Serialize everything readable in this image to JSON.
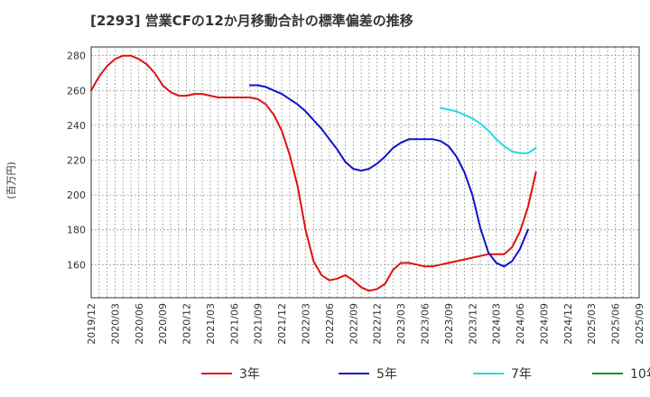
{
  "chart_data": {
    "type": "line",
    "title": "[2293]  営業CFの12か月移動合計の標準偏差の推移",
    "ylabel": "(百万円)",
    "xlabel": "",
    "ylim": [
      141,
      285
    ],
    "y_ticks": [
      160,
      180,
      200,
      220,
      240,
      260,
      280
    ],
    "x_ticks": [
      "2019/12",
      "2020/03",
      "2020/06",
      "2020/09",
      "2020/12",
      "2021/03",
      "2021/06",
      "2021/09",
      "2021/12",
      "2022/03",
      "2022/06",
      "2022/09",
      "2022/12",
      "2023/03",
      "2023/06",
      "2023/09",
      "2023/12",
      "2024/03",
      "2024/06",
      "2024/09",
      "2024/12",
      "2025/03",
      "2025/06",
      "2025/09"
    ],
    "grid": true,
    "legend_position": "bottom",
    "series": [
      {
        "name": "3年",
        "color": "#dd1111",
        "start": "2019/12",
        "values": [
          260,
          268,
          274,
          278,
          280,
          280,
          278,
          275,
          270,
          263,
          259,
          257,
          257,
          258,
          258,
          257,
          256,
          256,
          256,
          256,
          256,
          255,
          252,
          246,
          237,
          223,
          205,
          180,
          162,
          154,
          151,
          152,
          154,
          151,
          147,
          145,
          146,
          149,
          157,
          161,
          161,
          160,
          159,
          159,
          160,
          161,
          162,
          163,
          164,
          165,
          166,
          166,
          166,
          170,
          179,
          193,
          213
        ]
      },
      {
        "name": "5年",
        "color": "#1111cc",
        "start": "2021/08",
        "values": [
          263,
          263,
          262,
          260,
          258,
          255,
          252,
          248,
          243,
          238,
          232,
          226,
          219,
          215,
          214,
          215,
          218,
          222,
          227,
          230,
          232,
          232,
          232,
          232,
          231,
          228,
          222,
          213,
          200,
          181,
          167,
          161,
          159,
          162,
          169,
          180
        ]
      },
      {
        "name": "7年",
        "color": "#22dddd",
        "start": "2023/08",
        "values": [
          250,
          249,
          248,
          246,
          244,
          241,
          237,
          232,
          228,
          225,
          224,
          224,
          227
        ]
      },
      {
        "name": "10年",
        "color": "#228b22",
        "start": "",
        "values": []
      }
    ]
  }
}
